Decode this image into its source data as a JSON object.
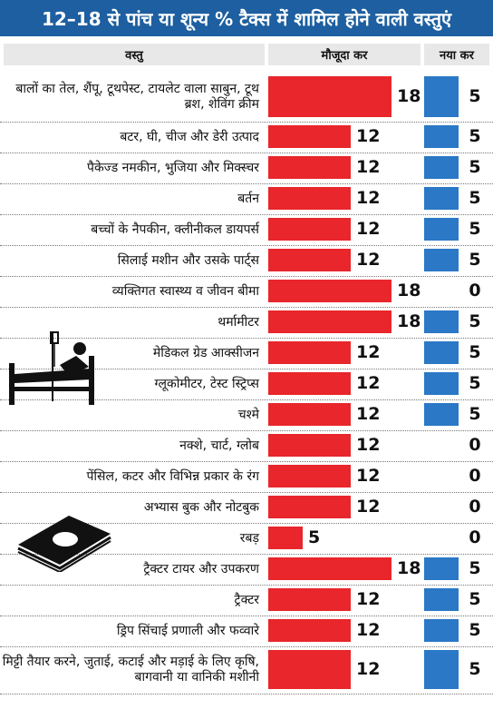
{
  "title": "12–18 से पांच या शून्य % टैक्स में शामिल होने वाली वस्तुएं",
  "headers": {
    "item": "वस्तु",
    "current": "मौजूदा कर",
    "new": "नया कर"
  },
  "colors": {
    "title_bg": "#1d5fa0",
    "current_bar": "#e8262b",
    "new_bar": "#2a78c6",
    "header_bg": "#e8e8e8"
  },
  "icons": [
    "hospital-bed-icon",
    "books-icon"
  ],
  "chart_data": {
    "type": "bar",
    "categories": [
      "बालों का तेल, शैंपू, टूथपेस्ट, टायलेट वाला साबुन, टूथ ब्रश, शेविंग क्रीम",
      "बटर, घी, चीज और डेरी उत्पाद",
      "पैकेज्ड नमकीन, भुजिया और मिक्स्चर",
      "बर्तन",
      "बच्चों के नैपकीन, क्लीनीकल डायपर्स",
      "सिलाई मशीन और उसके पार्ट्स",
      "व्यक्तिगत स्वास्थ्य व जीवन बीमा",
      "थर्मामीटर",
      "मेडिकल ग्रेड आक्सीजन",
      "ग्लूकोमीटर, टेस्ट स्ट्रिप्स",
      "चश्मे",
      "नक्शे, चार्ट, ग्लोब",
      "पेंसिल, कटर और विभिन्न प्रकार के रंग",
      "अभ्यास बुक और नोटबुक",
      "रबड़",
      "ट्रैक्टर टायर और उपकरण",
      "ट्रैक्टर",
      "ड्रिप सिंचाई प्रणाली और फव्वारे",
      "मिट्टी तैयार करने, जुताई, कटाई और मड़ाई के लिए कृषि, बागवानी या वानिकी मशीनी"
    ],
    "series": [
      {
        "name": "मौजूदा कर",
        "values": [
          18,
          12,
          12,
          12,
          12,
          12,
          18,
          18,
          12,
          12,
          12,
          12,
          12,
          12,
          5,
          18,
          12,
          12,
          12
        ]
      },
      {
        "name": "नया कर",
        "values": [
          5,
          5,
          5,
          5,
          5,
          5,
          0,
          5,
          5,
          5,
          5,
          0,
          0,
          0,
          0,
          5,
          5,
          5,
          5
        ]
      }
    ]
  }
}
